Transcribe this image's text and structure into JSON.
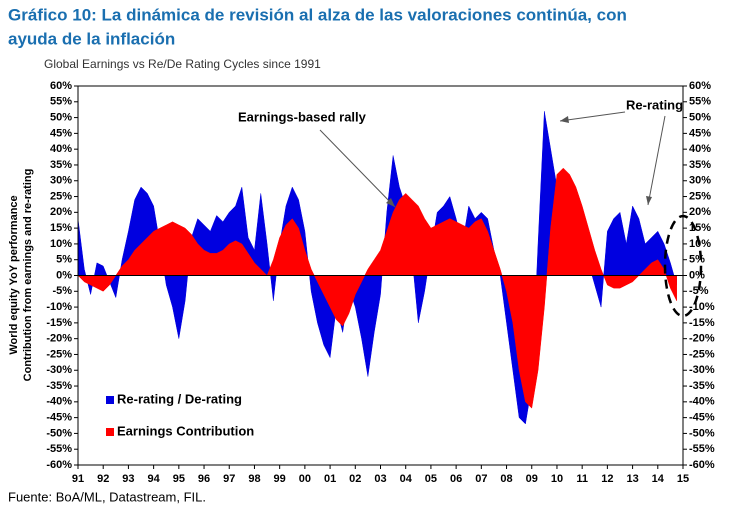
{
  "chart_data": {
    "type": "area",
    "title": [
      "Gráfico 10: La dinámica de revisión al alza de las valoraciones continúa, con",
      "ayuda de la inflación"
    ],
    "subtitle": "Global Earnings vs Re/De Rating Cycles since 1991",
    "ylabel": [
      "World equity YoY performance",
      "Contribution from earnings and re-rating"
    ],
    "source": "Fuente: BoA/ML, Datastream, FIL.",
    "annotations": [
      "Earnings-based rally",
      "Re-rating"
    ],
    "x": [
      1991,
      1991.25,
      1991.5,
      1991.75,
      1992,
      1992.25,
      1992.5,
      1992.75,
      1993,
      1993.25,
      1993.5,
      1993.75,
      1994,
      1994.25,
      1994.5,
      1994.75,
      1995,
      1995.25,
      1995.5,
      1995.75,
      1996,
      1996.25,
      1996.5,
      1996.75,
      1997,
      1997.25,
      1997.5,
      1997.75,
      1998,
      1998.25,
      1998.5,
      1998.75,
      1999,
      1999.25,
      1999.5,
      1999.75,
      2000,
      2000.25,
      2000.5,
      2000.75,
      2001,
      2001.25,
      2001.5,
      2001.75,
      2002,
      2002.25,
      2002.5,
      2002.75,
      2003,
      2003.25,
      2003.5,
      2003.75,
      2004,
      2004.25,
      2004.5,
      2004.75,
      2005,
      2005.25,
      2005.5,
      2005.75,
      2006,
      2006.25,
      2006.5,
      2006.75,
      2007,
      2007.25,
      2007.5,
      2007.75,
      2008,
      2008.25,
      2008.5,
      2008.75,
      2009,
      2009.25,
      2009.5,
      2009.75,
      2010,
      2010.25,
      2010.5,
      2010.75,
      2011,
      2011.25,
      2011.5,
      2011.75,
      2012,
      2012.25,
      2012.5,
      2012.75,
      2013,
      2013.25,
      2013.5,
      2013.75,
      2014,
      2014.25,
      2014.5,
      2014.75
    ],
    "series": [
      {
        "name": "Re-rating / De-rating",
        "color": "#0000e0",
        "axis": "y",
        "values": [
          18,
          2,
          -6,
          4,
          3,
          -2,
          -7,
          5,
          14,
          24,
          28,
          26,
          22,
          10,
          -3,
          -10,
          -20,
          -8,
          12,
          18,
          16,
          14,
          19,
          17,
          20,
          22,
          28,
          12,
          8,
          26,
          10,
          -8,
          10,
          22,
          28,
          24,
          14,
          -5,
          -15,
          -22,
          -26,
          -10,
          -18,
          -4,
          -10,
          -20,
          -32,
          -18,
          -6,
          20,
          38,
          28,
          22,
          6,
          -15,
          -5,
          8,
          20,
          22,
          25,
          18,
          10,
          22,
          18,
          20,
          18,
          8,
          0,
          -15,
          -30,
          -45,
          -47,
          -35,
          10,
          52,
          40,
          28,
          10,
          22,
          14,
          20,
          4,
          -3,
          -10,
          14,
          18,
          20,
          10,
          22,
          18,
          10,
          12,
          14,
          10,
          4,
          -3
        ]
      },
      {
        "name": "Earnings Contribution",
        "color": "#ff0000",
        "axis": "y",
        "values": [
          0,
          -2,
          -3,
          -4,
          -5,
          -3,
          0,
          3,
          5,
          8,
          10,
          12,
          14,
          15,
          16,
          17,
          16,
          15,
          13,
          10,
          8,
          7,
          7,
          8,
          10,
          11,
          10,
          7,
          4,
          2,
          0,
          5,
          12,
          16,
          18,
          15,
          8,
          2,
          -2,
          -6,
          -10,
          -14,
          -16,
          -12,
          -6,
          -2,
          2,
          5,
          8,
          14,
          20,
          24,
          26,
          24,
          22,
          18,
          15,
          16,
          17,
          18,
          17,
          16,
          15,
          17,
          18,
          14,
          8,
          2,
          -5,
          -15,
          -30,
          -40,
          -42,
          -30,
          -10,
          15,
          32,
          34,
          32,
          28,
          22,
          15,
          8,
          2,
          -3,
          -4,
          -4,
          -3,
          -2,
          0,
          2,
          4,
          5,
          2,
          -4,
          -8
        ]
      }
    ],
    "xlim": [
      1991,
      2015
    ],
    "xticks": [
      {
        "value": 1991,
        "label": "91"
      },
      {
        "value": 1992,
        "label": "92"
      },
      {
        "value": 1993,
        "label": "93"
      },
      {
        "value": 1994,
        "label": "94"
      },
      {
        "value": 1995,
        "label": "95"
      },
      {
        "value": 1996,
        "label": "96"
      },
      {
        "value": 1997,
        "label": "97"
      },
      {
        "value": 1998,
        "label": "98"
      },
      {
        "value": 1999,
        "label": "99"
      },
      {
        "value": 2000,
        "label": "00"
      },
      {
        "value": 2001,
        "label": "01"
      },
      {
        "value": 2002,
        "label": "02"
      },
      {
        "value": 2003,
        "label": "03"
      },
      {
        "value": 2004,
        "label": "04"
      },
      {
        "value": 2005,
        "label": "05"
      },
      {
        "value": 2006,
        "label": "06"
      },
      {
        "value": 2007,
        "label": "07"
      },
      {
        "value": 2008,
        "label": "08"
      },
      {
        "value": 2009,
        "label": "09"
      },
      {
        "value": 2010,
        "label": "10"
      },
      {
        "value": 2011,
        "label": "11"
      },
      {
        "value": 2012,
        "label": "12"
      },
      {
        "value": 2013,
        "label": "13"
      },
      {
        "value": 2014,
        "label": "14"
      },
      {
        "value": 2015,
        "label": "15"
      }
    ],
    "ylim": [
      -60,
      60
    ],
    "yticks": [
      {
        "value": -60,
        "label": "-60%"
      },
      {
        "value": -55,
        "label": "-55%"
      },
      {
        "value": -50,
        "label": "-50%"
      },
      {
        "value": -45,
        "label": "-45%"
      },
      {
        "value": -40,
        "label": "-40%"
      },
      {
        "value": -35,
        "label": "-35%"
      },
      {
        "value": -30,
        "label": "-30%"
      },
      {
        "value": -25,
        "label": "-25%"
      },
      {
        "value": -20,
        "label": "-20%"
      },
      {
        "value": -15,
        "label": "-15%"
      },
      {
        "value": -10,
        "label": "-10%"
      },
      {
        "value": -5,
        "label": "-5%"
      },
      {
        "value": 0,
        "label": "0%"
      },
      {
        "value": 5,
        "label": "5%"
      },
      {
        "value": 10,
        "label": "10%"
      },
      {
        "value": 15,
        "label": "15%"
      },
      {
        "value": 20,
        "label": "20%"
      },
      {
        "value": 25,
        "label": "25%"
      },
      {
        "value": 30,
        "label": "30%"
      },
      {
        "value": 35,
        "label": "35%"
      },
      {
        "value": 40,
        "label": "40%"
      },
      {
        "value": 45,
        "label": "45%"
      },
      {
        "value": 50,
        "label": "50%"
      },
      {
        "value": 55,
        "label": "55%"
      },
      {
        "value": 60,
        "label": "60%"
      }
    ],
    "y2lim": [
      -60,
      60
    ],
    "y2ticks": [
      {
        "value": -60,
        "label": "-60%"
      },
      {
        "value": -55,
        "label": "-55%"
      },
      {
        "value": -50,
        "label": "-50%"
      },
      {
        "value": -45,
        "label": "-45%"
      },
      {
        "value": -40,
        "label": "-40%"
      },
      {
        "value": -35,
        "label": "-35%"
      },
      {
        "value": -30,
        "label": "-30%"
      },
      {
        "value": -25,
        "label": "-25%"
      },
      {
        "value": -20,
        "label": "-20%"
      },
      {
        "value": -15,
        "label": "-15%"
      },
      {
        "value": -10,
        "label": "-10%"
      },
      {
        "value": -5,
        "label": "-5%"
      },
      {
        "value": 0,
        "label": "0%"
      },
      {
        "value": 5,
        "label": "5%"
      },
      {
        "value": 10,
        "label": "10%"
      },
      {
        "value": 15,
        "label": "15%"
      },
      {
        "value": 20,
        "label": "20%"
      },
      {
        "value": 25,
        "label": "25%"
      },
      {
        "value": 30,
        "label": "30%"
      },
      {
        "value": 35,
        "label": "35%"
      },
      {
        "value": 40,
        "label": "40%"
      },
      {
        "value": 45,
        "label": "45%"
      },
      {
        "value": 50,
        "label": "50%"
      },
      {
        "value": 55,
        "label": "55%"
      },
      {
        "value": 60,
        "label": "60%"
      }
    ],
    "grid": false,
    "legend": "lower left"
  }
}
